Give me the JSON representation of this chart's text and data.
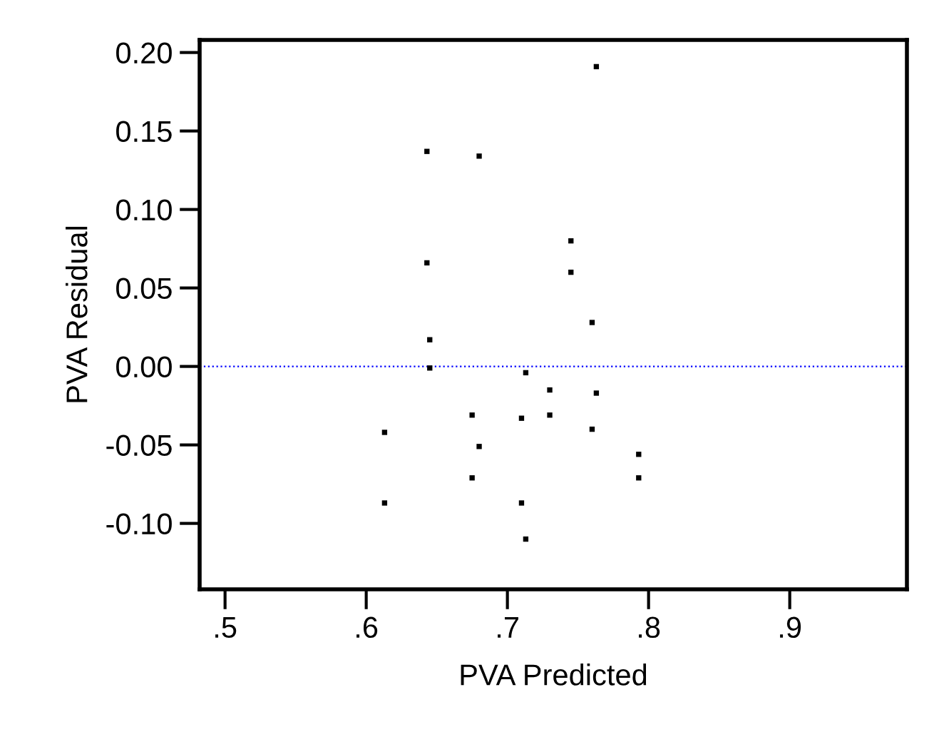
{
  "chart_data": {
    "type": "scatter",
    "xlabel": "PVA Predicted",
    "ylabel": "PVA Residual",
    "x": [
      0.763,
      0.643,
      0.68,
      0.745,
      0.745,
      0.643,
      0.76,
      0.645,
      0.645,
      0.713,
      0.73,
      0.763,
      0.675,
      0.71,
      0.73,
      0.76,
      0.613,
      0.68,
      0.793,
      0.793,
      0.675,
      0.613,
      0.71,
      0.713
    ],
    "values": [
      0.191,
      0.137,
      0.134,
      0.08,
      0.06,
      0.066,
      0.028,
      0.017,
      -0.001,
      -0.004,
      -0.015,
      -0.017,
      -0.031,
      -0.033,
      -0.031,
      -0.04,
      -0.042,
      -0.051,
      -0.056,
      -0.071,
      -0.071,
      -0.087,
      -0.087,
      -0.11
    ],
    "color": "#000000",
    "marker": "square",
    "xlim": [
      0.482,
      0.983
    ],
    "ylim": [
      -0.142,
      0.208
    ],
    "xticks": [
      {
        "value": 0.5,
        "label": ".5"
      },
      {
        "value": 0.6,
        "label": ".6"
      },
      {
        "value": 0.7,
        "label": ".7"
      },
      {
        "value": 0.8,
        "label": ".8"
      },
      {
        "value": 0.9,
        "label": ".9"
      }
    ],
    "yticks": [
      {
        "value": -0.1,
        "label": "-0.10"
      },
      {
        "value": -0.05,
        "label": "-0.05"
      },
      {
        "value": 0.0,
        "label": "0.00"
      },
      {
        "value": 0.05,
        "label": "0.05"
      },
      {
        "value": 0.1,
        "label": "0.10"
      },
      {
        "value": 0.15,
        "label": "0.15"
      },
      {
        "value": 0.2,
        "label": "0.20"
      }
    ],
    "ref_lines": [
      {
        "axis": "y",
        "value": 0.0,
        "color": "#0000ff",
        "line_style": "dotted"
      }
    ],
    "grid": false,
    "legend": false
  }
}
